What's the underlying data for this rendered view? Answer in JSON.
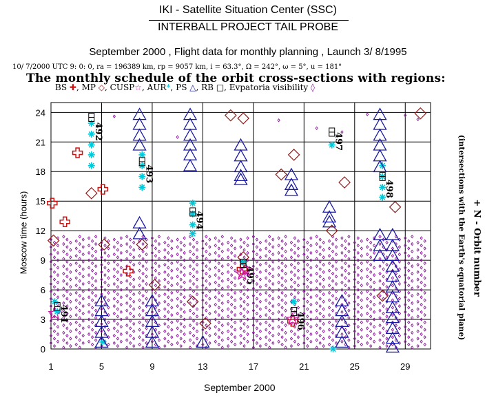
{
  "header": {
    "center": "IKI - Satellite Situation Center (SSC)",
    "project": "INTERBALL PROJECT TAIL PROBE",
    "subtitle": "September 2000 ,  Flight data for monthly planning ,   Launch  3/ 8/1995",
    "orbit_params": "10/ 7/2000 UTC  9: 0: 0, ra = 196389 km, rp =   9057 km, i = 63.3°,  Ω = 242°,  ω =    5°,  u = 181°",
    "schedule_title": "The monthly schedule of the orbit cross-sections with regions:"
  },
  "legend": {
    "items": [
      {
        "label": "BS",
        "symbol": "cross",
        "glyph": "✚",
        "color": "#cc1111"
      },
      {
        "label": "MP",
        "symbol": "diamond",
        "glyph": "◇",
        "color": "#8b1a1a"
      },
      {
        "label": "CUSP",
        "symbol": "star",
        "glyph": "☆",
        "color": "#d41aa8"
      },
      {
        "label": "AUR",
        "symbol": "asterisk",
        "glyph": "*",
        "color": "#00c8d8"
      },
      {
        "label": "PS",
        "symbol": "triangle",
        "glyph": "△",
        "color": "#1a1aa0"
      },
      {
        "label": "RB",
        "symbol": "box",
        "glyph": "□",
        "color": "#000000"
      },
      {
        "label": "Evpatoria visibility",
        "symbol": "small-diamond",
        "glyph": "◊",
        "color": "#8b1a9c"
      }
    ]
  },
  "chart_data": {
    "type": "scatter",
    "title": "The monthly schedule of the orbit cross-sections with regions",
    "xlabel": "September 2000",
    "ylabel": "Moscow time (hours)",
    "right_label_1": "+ N - Orbit number",
    "right_label_2": "(intersections with the Earth's equatorial plane)",
    "xlim": [
      1,
      31
    ],
    "ylim": [
      0,
      25
    ],
    "xticks": [
      1,
      5,
      9,
      13,
      17,
      21,
      25,
      29
    ],
    "yticks": [
      0,
      3,
      6,
      9,
      12,
      15,
      18,
      21,
      24
    ],
    "grid": true,
    "orbit_numbers": [
      {
        "label": "491",
        "day": 1.5,
        "hour": 4.5
      },
      {
        "label": "492",
        "day": 4.2,
        "hour": 23.0
      },
      {
        "label": "493",
        "day": 8.2,
        "hour": 18.7
      },
      {
        "label": "494",
        "day": 12.2,
        "hour": 14.0
      },
      {
        "label": "495",
        "day": 16.2,
        "hour": 8.4
      },
      {
        "label": "496",
        "day": 20.2,
        "hour": 3.8
      },
      {
        "label": "497",
        "day": 23.2,
        "hour": 22.0
      },
      {
        "label": "498",
        "day": 27.2,
        "hour": 17.2
      }
    ],
    "series": [
      {
        "name": "BS",
        "symbol": "cross",
        "color": "#cc1111",
        "points": [
          [
            1.1,
            14.8
          ],
          [
            2.1,
            12.9
          ],
          [
            3.1,
            19.9
          ],
          [
            5.1,
            16.2
          ],
          [
            7.1,
            7.9
          ],
          [
            16.1,
            8.1
          ],
          [
            20.1,
            2.8
          ]
        ]
      },
      {
        "name": "MP",
        "symbol": "diamond",
        "color": "#8b1a1a",
        "points": [
          [
            1.2,
            11
          ],
          [
            4.2,
            15.8
          ],
          [
            5.2,
            10.6
          ],
          [
            8.2,
            10.6
          ],
          [
            9.2,
            6.5
          ],
          [
            12.2,
            4.8
          ],
          [
            13.2,
            2.6
          ],
          [
            15.2,
            23.7
          ],
          [
            16.2,
            23.4
          ],
          [
            16.2,
            9.3
          ],
          [
            19.2,
            17.7
          ],
          [
            20.2,
            19.7
          ],
          [
            23.2,
            12.0
          ],
          [
            24.2,
            16.9
          ],
          [
            27.2,
            5.4
          ],
          [
            28.2,
            14.4
          ],
          [
            30.2,
            23.9
          ]
        ]
      },
      {
        "name": "CUSP",
        "symbol": "star",
        "color": "#d41aa8",
        "points": [
          [
            16.1,
            7.6
          ],
          [
            16.4,
            8.0
          ],
          [
            20.1,
            3.0
          ],
          [
            1.3,
            3.6
          ]
        ]
      },
      {
        "name": "AUR",
        "symbol": "asterisk",
        "color": "#00c8d8",
        "points": [
          [
            1.3,
            4.8
          ],
          [
            1.5,
            3.8
          ],
          [
            4.2,
            22.9
          ],
          [
            4.2,
            21.8
          ],
          [
            4.2,
            20.7
          ],
          [
            4.2,
            19.7
          ],
          [
            4.2,
            18.6
          ],
          [
            5.1,
            0.7
          ],
          [
            8.2,
            19.7
          ],
          [
            8.2,
            18.6
          ],
          [
            8.2,
            17.5
          ],
          [
            8.2,
            16.4
          ],
          [
            12.2,
            14.8
          ],
          [
            12.2,
            13.7
          ],
          [
            12.2,
            12.6
          ],
          [
            12.2,
            11.7
          ],
          [
            16.2,
            8.8
          ],
          [
            20.2,
            4.8
          ],
          [
            23.2,
            20.7
          ],
          [
            23.3,
            0
          ],
          [
            27.2,
            18.6
          ],
          [
            27.2,
            17.5
          ],
          [
            27.2,
            16.4
          ],
          [
            27.2,
            15.4
          ]
        ]
      },
      {
        "name": "PS",
        "symbol": "triangle",
        "color": "#1a1aa0",
        "points": [
          [
            5,
            4.8
          ],
          [
            5,
            3.8
          ],
          [
            5,
            2.7
          ],
          [
            5,
            1.6
          ],
          [
            5,
            0.6
          ],
          [
            8,
            23.7
          ],
          [
            8,
            22.7
          ],
          [
            8,
            21.6
          ],
          [
            8,
            20.6
          ],
          [
            8,
            12.7
          ],
          [
            8,
            11.6
          ],
          [
            9,
            4.8
          ],
          [
            9,
            3.8
          ],
          [
            9,
            2.7
          ],
          [
            9,
            1.6
          ],
          [
            9,
            0.6
          ],
          [
            12,
            23.7
          ],
          [
            12,
            22.7
          ],
          [
            12,
            21.6
          ],
          [
            12,
            20.6
          ],
          [
            12,
            19.6
          ],
          [
            12,
            18.5
          ],
          [
            13,
            0.6
          ],
          [
            16,
            20.6
          ],
          [
            16,
            19.5
          ],
          [
            16,
            18.4
          ],
          [
            16,
            17.5
          ],
          [
            16,
            17.1
          ],
          [
            20,
            17.6
          ],
          [
            20,
            16.6
          ],
          [
            20,
            16.0
          ],
          [
            23,
            14.3
          ],
          [
            23,
            13.3
          ],
          [
            23,
            12.8
          ],
          [
            24,
            4.8
          ],
          [
            24,
            3.8
          ],
          [
            24,
            2.7
          ],
          [
            24,
            1.6
          ],
          [
            24,
            0.6
          ],
          [
            27,
            23.7
          ],
          [
            27,
            22.7
          ],
          [
            27,
            21.6
          ],
          [
            27,
            20.6
          ],
          [
            27,
            19.5
          ],
          [
            27,
            18.4
          ],
          [
            27,
            11.5
          ],
          [
            27,
            10.4
          ],
          [
            27,
            9.4
          ],
          [
            28,
            11.5
          ],
          [
            28,
            10.4
          ],
          [
            28,
            9.4
          ],
          [
            28,
            8.3
          ],
          [
            28,
            7.3
          ],
          [
            28,
            6.2
          ],
          [
            28,
            5.2
          ],
          [
            28,
            4.1
          ],
          [
            28,
            3.1
          ],
          [
            28,
            2.0
          ],
          [
            28,
            1.0
          ],
          [
            28,
            0.1
          ]
        ]
      },
      {
        "name": "RB",
        "symbol": "box",
        "color": "#000000",
        "points": [
          [
            1.5,
            4.3
          ],
          [
            4.2,
            23.5
          ],
          [
            8.2,
            19.0
          ],
          [
            12.2,
            13.9
          ],
          [
            16.2,
            8.7
          ],
          [
            20.2,
            3.8
          ],
          [
            23.2,
            22.0
          ],
          [
            27.2,
            17.5
          ]
        ]
      }
    ]
  }
}
